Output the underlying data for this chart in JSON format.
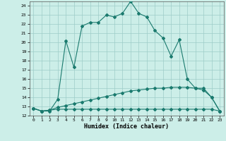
{
  "xlabel": "Humidex (Indice chaleur)",
  "x_ticks": [
    0,
    1,
    2,
    3,
    4,
    5,
    6,
    7,
    8,
    9,
    10,
    11,
    12,
    13,
    14,
    15,
    16,
    17,
    18,
    19,
    20,
    21,
    22,
    23
  ],
  "ylim": [
    12,
    24.5
  ],
  "xlim": [
    -0.5,
    23.5
  ],
  "yticks": [
    12,
    13,
    14,
    15,
    16,
    17,
    18,
    19,
    20,
    21,
    22,
    23,
    24
  ],
  "line1_x": [
    0,
    1,
    2,
    3,
    4,
    5,
    6,
    7,
    8,
    9,
    10,
    11,
    12,
    13,
    14,
    15,
    16,
    17,
    18,
    19,
    20,
    21,
    22,
    23
  ],
  "line1_y": [
    12.8,
    12.5,
    12.5,
    13.8,
    20.2,
    17.3,
    21.8,
    22.2,
    22.2,
    23.0,
    22.8,
    23.2,
    24.5,
    23.2,
    22.8,
    21.3,
    20.5,
    18.5,
    20.3,
    16.0,
    15.0,
    15.0,
    14.0,
    12.5
  ],
  "line2_x": [
    0,
    1,
    2,
    3,
    4,
    5,
    6,
    7,
    8,
    9,
    10,
    11,
    12,
    13,
    14,
    15,
    16,
    17,
    18,
    19,
    20,
    21,
    22,
    23
  ],
  "line2_y": [
    12.8,
    12.5,
    12.6,
    12.9,
    13.1,
    13.3,
    13.5,
    13.7,
    13.9,
    14.1,
    14.3,
    14.5,
    14.7,
    14.8,
    14.9,
    15.0,
    15.0,
    15.1,
    15.1,
    15.1,
    15.0,
    14.8,
    14.0,
    12.5
  ],
  "line3_x": [
    0,
    1,
    2,
    3,
    4,
    5,
    6,
    7,
    8,
    9,
    10,
    11,
    12,
    13,
    14,
    15,
    16,
    17,
    18,
    19,
    20,
    21,
    22,
    23
  ],
  "line3_y": [
    12.8,
    12.5,
    12.6,
    12.7,
    12.7,
    12.7,
    12.7,
    12.7,
    12.7,
    12.7,
    12.7,
    12.7,
    12.7,
    12.7,
    12.7,
    12.7,
    12.7,
    12.7,
    12.7,
    12.7,
    12.7,
    12.7,
    12.7,
    12.5
  ],
  "line_color": "#1a7a6e",
  "bg_color": "#cceee8",
  "grid_color": "#9dccc7"
}
